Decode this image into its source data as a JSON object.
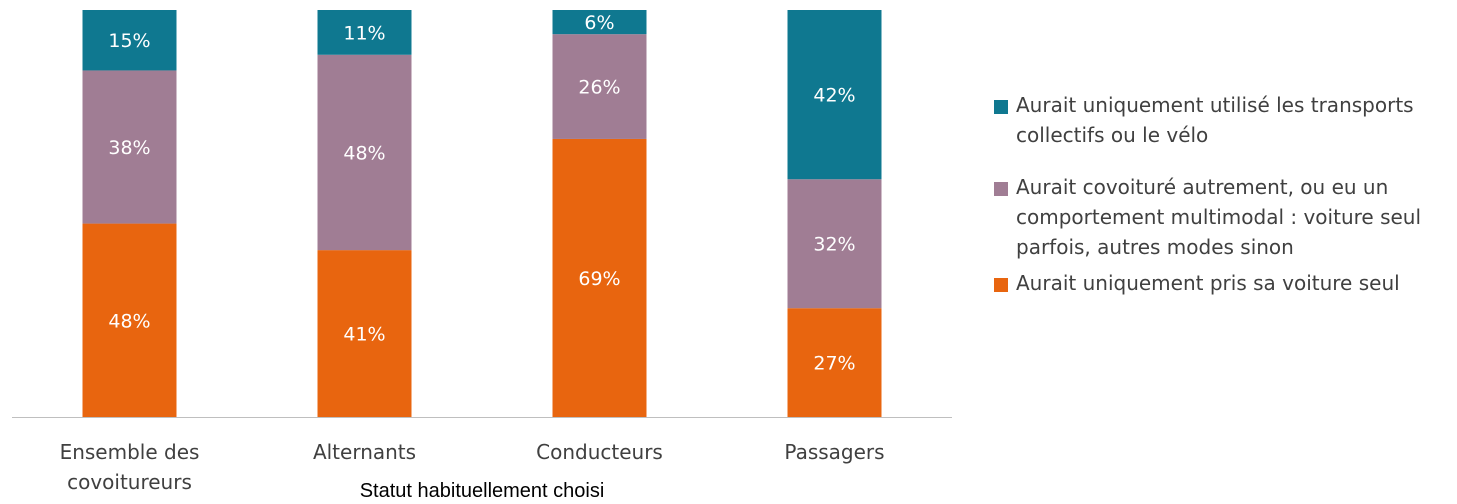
{
  "chart_data": {
    "type": "bar",
    "stacked": true,
    "normalized_percent": true,
    "categories": [
      "Ensemble des covoitureurs",
      "Alternants",
      "Conducteurs",
      "Passagers"
    ],
    "series": [
      {
        "name": "Aurait uniquement pris sa voiture seul",
        "values": [
          48,
          41,
          69,
          27
        ],
        "labels": [
          "48%",
          "41%",
          "69%",
          "27%"
        ],
        "color": "#E8650F"
      },
      {
        "name": "Aurait covoituré autrement, ou eu un comportement multimodal : voiture seul parfois, autres modes sinon",
        "values": [
          38,
          48,
          26,
          32
        ],
        "labels": [
          "38%",
          "48%",
          "26%",
          "32%"
        ],
        "color": "#A07D94"
      },
      {
        "name": "Aurait uniquement utilisé les transports collectifs ou le vélo",
        "values": [
          15,
          11,
          6,
          42
        ],
        "labels": [
          "15%",
          "11%",
          "6%",
          "42%"
        ],
        "color": "#0F7890"
      }
    ],
    "xlabel": "Statut habituellement choisi",
    "legend_position": "right",
    "grid": false
  },
  "legend": {
    "items": [
      {
        "label": "Aurait uniquement utilisé les transports collectifs ou le vélo",
        "color": "#0F7890"
      },
      {
        "label": "Aurait covoituré autrement, ou eu un comportement multimodal : voiture seul parfois, autres modes sinon",
        "color": "#A07D94"
      },
      {
        "label": "Aurait uniquement pris sa voiture seul",
        "color": "#E8650F"
      }
    ]
  }
}
